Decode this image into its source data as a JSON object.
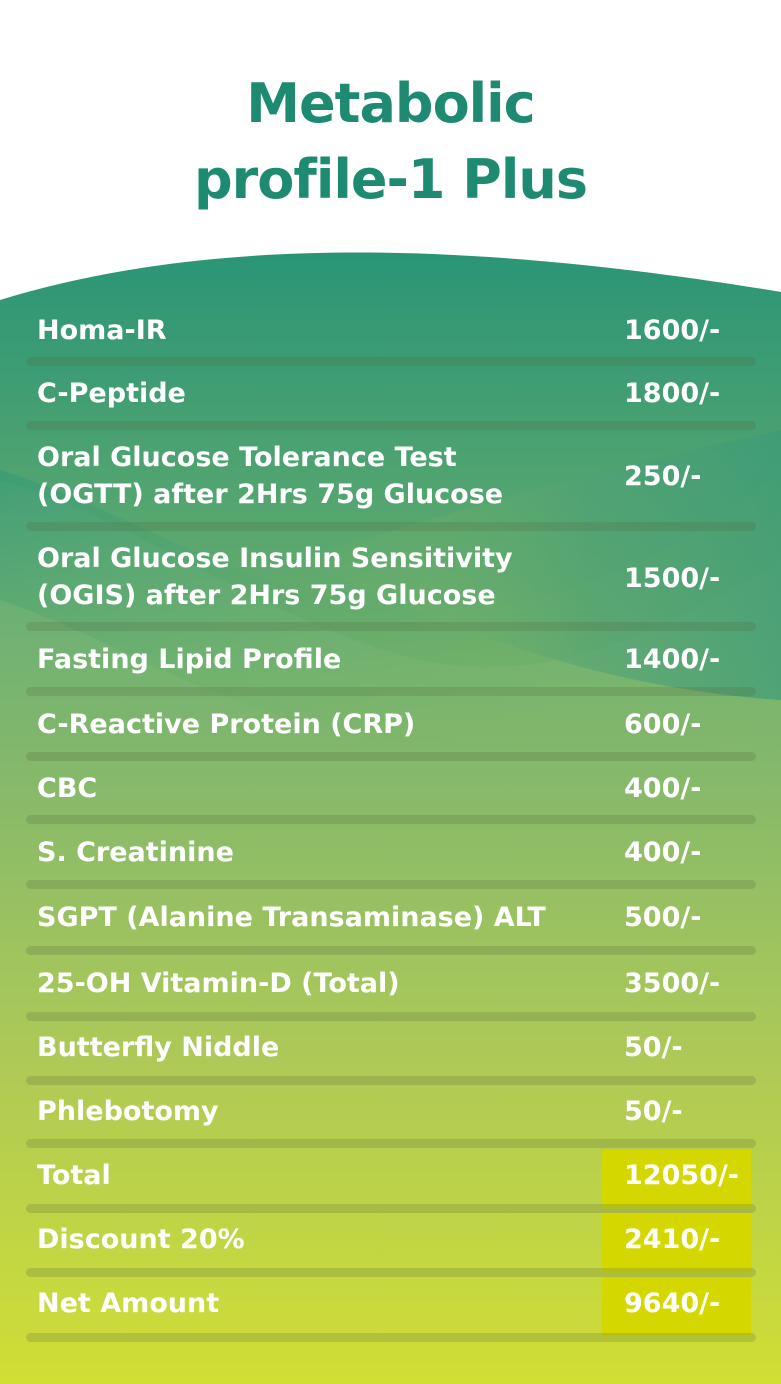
{
  "title": {
    "line1": "Metabolic",
    "line2": "profile-1 Plus"
  },
  "colors": {
    "title": "#1f8a72",
    "gradient_top": "#2a9576",
    "gradient_bottom": "#cfdd2a",
    "highlight": "#d4d800",
    "text": "#ffffff"
  },
  "items": [
    {
      "label": "Homa-IR",
      "price": "1600/-"
    },
    {
      "label": "C-Peptide",
      "price": "1800/-"
    },
    {
      "label": "Oral Glucose Tolerance Test",
      "label2": "(OGTT) after 2Hrs 75g Glucose",
      "price": "250/-"
    },
    {
      "label": "Oral Glucose Insulin Sensitivity",
      "label2": "(OGIS) after 2Hrs 75g Glucose",
      "price": "1500/-"
    },
    {
      "label": "Fasting Lipid Profile",
      "price": "1400/-"
    },
    {
      "label": "C-Reactive Protein (CRP)",
      "price": "600/-"
    },
    {
      "label": "CBC",
      "price": "400/-"
    },
    {
      "label": "S. Creatinine",
      "price": "400/-"
    },
    {
      "label": "SGPT (Alanine Transaminase) ALT",
      "price": "500/-"
    },
    {
      "label": "25-OH Vitamin-D (Total)",
      "price": "3500/-"
    },
    {
      "label": "Butterfly Niddle",
      "price": "50/-"
    },
    {
      "label": "Phlebotomy",
      "price": "50/-"
    }
  ],
  "summary": [
    {
      "label": "Total",
      "price": "12050/-"
    },
    {
      "label": "Discount 20%",
      "price": "2410/-"
    },
    {
      "label": "Net Amount",
      "price": "9640/-"
    }
  ]
}
